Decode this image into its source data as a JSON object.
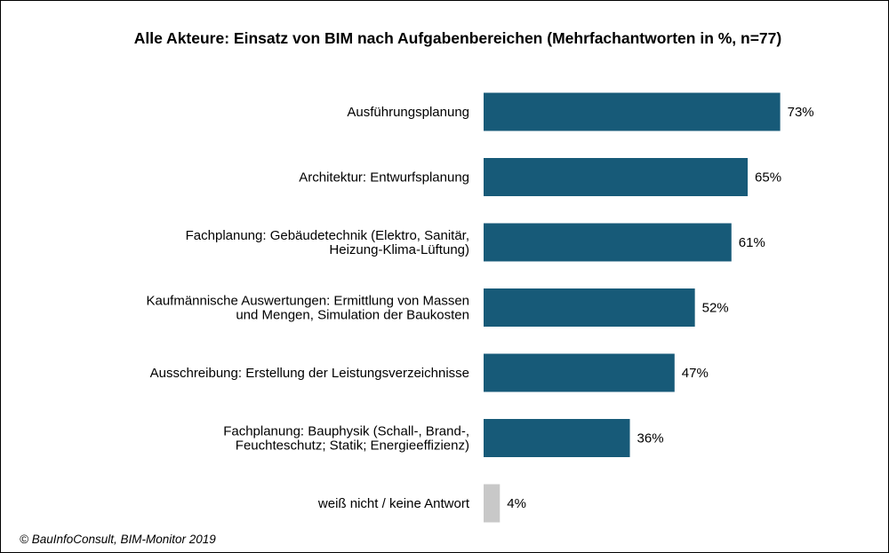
{
  "chart_data": {
    "type": "bar",
    "orientation": "horizontal",
    "title": "Alle Akteure: Einsatz von BIM nach Aufgabenbereichen (Mehrfachantworten in %, n=77)",
    "categories": [
      [
        "Ausführungsplanung"
      ],
      [
        "Architektur: Entwurfsplanung"
      ],
      [
        "Fachplanung: Gebäudetechnik (Elektro, Sanitär,",
        "Heizung-Klima-Lüftung)"
      ],
      [
        "Kaufmännische Auswertungen: Ermittlung von Massen",
        "und Mengen, Simulation der Baukosten"
      ],
      [
        "Ausschreibung: Erstellung der Leistungsverzeichnisse"
      ],
      [
        "Fachplanung: Bauphysik (Schall-, Brand-,",
        "Feuchteschutz; Statik; Energieeffizienz)"
      ],
      [
        "weiß nicht / keine Antwort"
      ]
    ],
    "values": [
      73,
      65,
      61,
      52,
      47,
      36,
      4
    ],
    "value_labels": [
      "73%",
      "65%",
      "61%",
      "52%",
      "47%",
      "36%",
      "4%"
    ],
    "bar_colors": [
      "#175a78",
      "#175a78",
      "#175a78",
      "#175a78",
      "#175a78",
      "#175a78",
      "#c8c8c8"
    ],
    "xlim": [
      0,
      100
    ],
    "grid": false,
    "legend": "none"
  },
  "source": "© BauInfoConsult, BIM-Monitor 2019"
}
